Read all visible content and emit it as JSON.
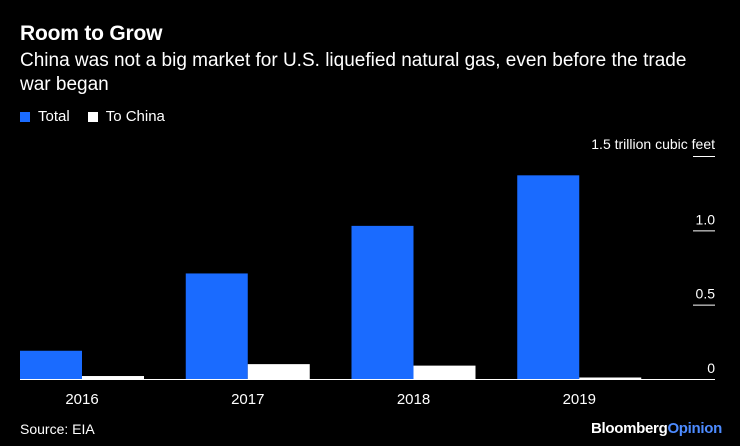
{
  "header": {
    "title": "Room to Grow",
    "subtitle": "China was not a big market for U.S. liquefied natural gas, even before the trade war began"
  },
  "footer": {
    "source": "Source: EIA",
    "brand_part1": "Bloomberg",
    "brand_part2": "Opinion"
  },
  "colors": {
    "background": "#000000",
    "total": "#1a6bff",
    "china": "#ffffff",
    "text": "#ffffff",
    "brand_accent": "#4d8bff"
  },
  "chart_data": {
    "type": "bar",
    "title": "Room to Grow",
    "subtitle": "China was not a big market for U.S. liquefied natural gas, even before the trade war began",
    "categories": [
      "2016",
      "2017",
      "2018",
      "2019"
    ],
    "series": [
      {
        "name": "Total",
        "color": "#1a6bff",
        "values": [
          0.19,
          0.71,
          1.03,
          1.37
        ]
      },
      {
        "name": "To China",
        "color": "#ffffff",
        "values": [
          0.02,
          0.1,
          0.09,
          0.01
        ]
      }
    ],
    "yticks": [
      0,
      0.5,
      1.0
    ],
    "ytick_labels": [
      "0",
      "0.5",
      "1.0"
    ],
    "ylim": [
      0,
      1.5
    ],
    "unit_label": "1.5 trillion cubic feet",
    "xlabel": "",
    "ylabel": "trillion cubic feet",
    "legend_position": "top-left",
    "grid": false
  }
}
